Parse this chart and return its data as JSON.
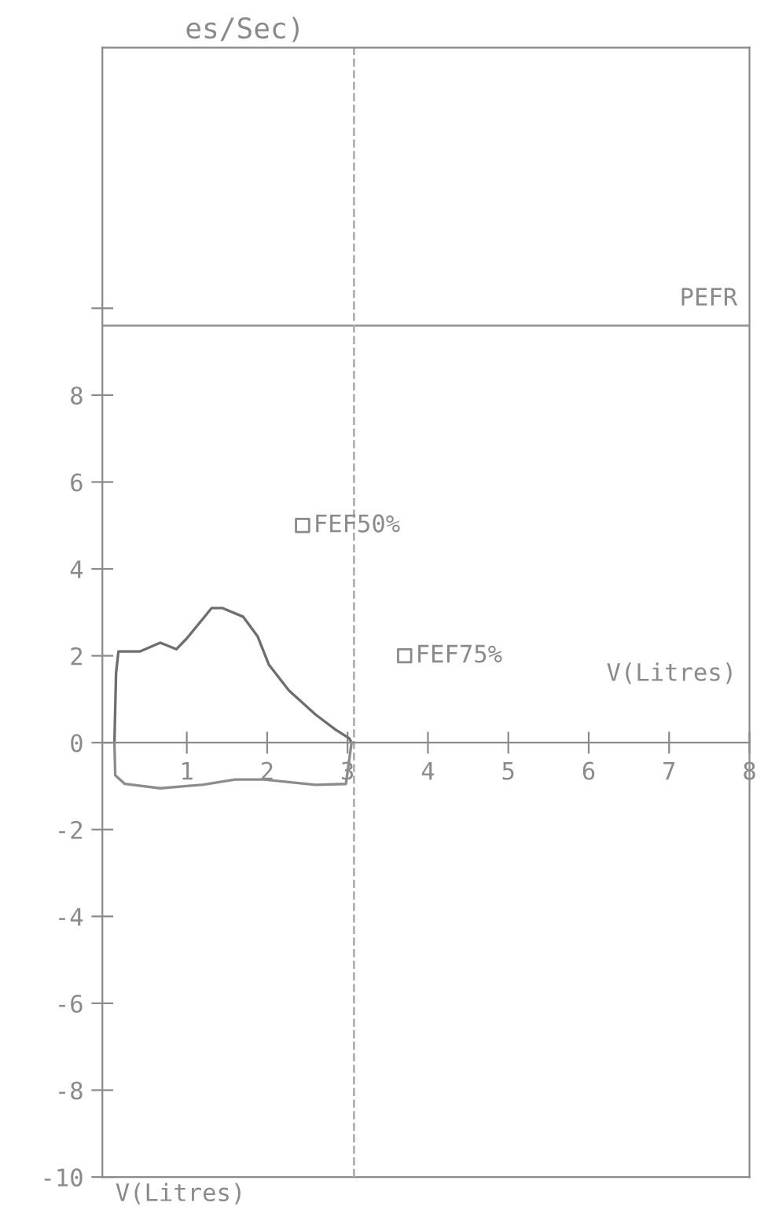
{
  "chart_data": {
    "type": "line",
    "ylabel": "es/Sec)",
    "xlabel": "V(Litres)",
    "xlim": [
      -0.05,
      8.0
    ],
    "ylim": [
      -10,
      16
    ],
    "xticks": [
      1,
      2,
      3,
      4,
      5,
      6,
      7,
      8
    ],
    "yticks": [
      -10,
      -8,
      -6,
      -4,
      -2,
      0,
      2,
      4,
      6,
      8,
      {
        "value": 10,
        "label": null
      }
    ],
    "grid": false,
    "marker": "none",
    "line_style": "solid",
    "series": [
      {
        "color": "#6e6e6e",
        "x": [
          0.1,
          0.12,
          0.15,
          0.42,
          0.67,
          0.87,
          1.0,
          1.31,
          1.44,
          1.7,
          1.88,
          2.02,
          2.27,
          2.6,
          2.85,
          3.02,
          3.05
        ],
        "values": [
          0,
          1.6,
          2.1,
          2.1,
          2.3,
          2.15,
          2.4,
          3.1,
          3.1,
          2.9,
          2.45,
          1.8,
          1.2,
          0.65,
          0.3,
          0.1,
          0
        ]
      },
      {
        "color": "#8c8c8c",
        "x": [
          0.1,
          0.11,
          0.23,
          0.67,
          1.19,
          1.6,
          1.96,
          2.6,
          2.98,
          3.05
        ],
        "values": [
          0,
          -0.75,
          -0.95,
          -1.05,
          -0.97,
          -0.85,
          -0.85,
          -0.97,
          -0.95,
          0
        ]
      },
      {
        "type": "scatter",
        "marker": "square",
        "color": "#8a8a8a",
        "x": [
          2.44,
          3.71
        ],
        "values": [
          5.0,
          2.0
        ]
      }
    ],
    "ref_lines": [
      {
        "axis": "y",
        "value": 9.6,
        "label": "PEFR",
        "color": "#9a9a9a",
        "line_style": "solid"
      },
      {
        "axis": "x",
        "value": 3.08,
        "color": "#b0b0b0",
        "line_style": "dashed"
      }
    ],
    "annotations": [
      {
        "text": "FEF50%",
        "x": 2.44,
        "y": 5.0
      },
      {
        "text": "FEF75%",
        "x": 3.71,
        "y": 2.0
      },
      "V(Litres)"
    ]
  }
}
